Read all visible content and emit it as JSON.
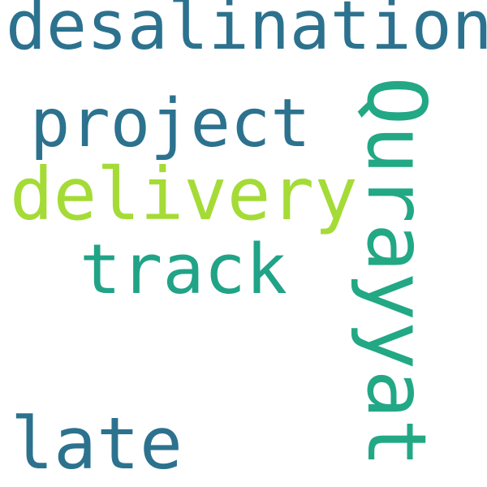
{
  "words": [
    {
      "id": "desalination",
      "text": "desalination",
      "color": "#2c728e"
    },
    {
      "id": "project",
      "text": "project",
      "color": "#2c728e"
    },
    {
      "id": "delivery",
      "text": "delivery",
      "color": "#a5db36"
    },
    {
      "id": "track",
      "text": "track",
      "color": "#20a386"
    },
    {
      "id": "late",
      "text": "late",
      "color": "#2c728e"
    },
    {
      "id": "qurayyat",
      "text": "Qurayyat",
      "color": "#22a884"
    }
  ]
}
